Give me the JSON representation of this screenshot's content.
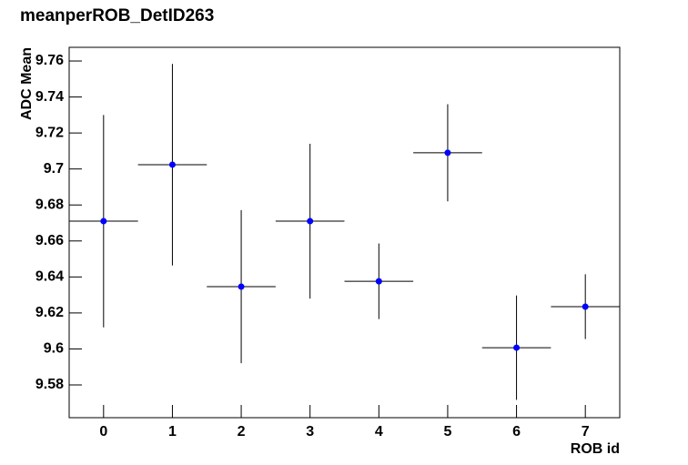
{
  "chart_data": {
    "type": "scatter",
    "title": "meanperROB_DetID263",
    "xlabel": "ROB id",
    "ylabel": "ADC Mean",
    "x": [
      0,
      1,
      2,
      3,
      4,
      5,
      6,
      7
    ],
    "values": [
      9.671,
      9.7024,
      9.6346,
      9.671,
      9.6376,
      9.709,
      9.6007,
      9.6235
    ],
    "errors": [
      0.059,
      0.056,
      0.0425,
      0.043,
      0.021,
      0.027,
      0.029,
      0.018
    ],
    "xerr": [
      0.5,
      0.5,
      0.5,
      0.5,
      0.5,
      0.5,
      0.5,
      0.5
    ],
    "color": "#0000ff",
    "xlim": [
      -0.5,
      7.5
    ],
    "xticks": [
      0,
      1,
      2,
      3,
      4,
      5,
      6,
      7
    ],
    "ylim": [
      9.5618,
      9.7676
    ],
    "yticks": [
      9.58,
      9.6,
      9.62,
      9.64,
      9.66,
      9.68,
      9.7,
      9.72,
      9.74,
      9.76
    ]
  }
}
